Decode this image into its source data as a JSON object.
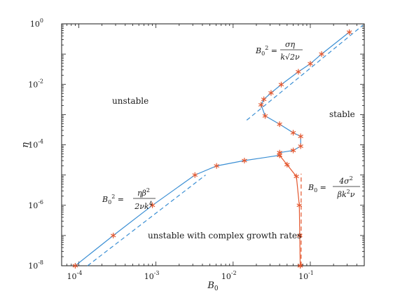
{
  "chart_data": {
    "type": "line",
    "xscale": "log",
    "yscale": "log",
    "xlim": [
      6e-05,
      0.5
    ],
    "ylim": [
      1e-08,
      1
    ],
    "xlabel": "B0",
    "ylabel": "η",
    "xtick_labels": [
      {
        "base": "10",
        "exp": "-4"
      },
      {
        "base": "10",
        "exp": "-3"
      },
      {
        "base": "10",
        "exp": "-2"
      },
      {
        "base": "10",
        "exp": "-1"
      }
    ],
    "ytick_labels": [
      {
        "base": "10",
        "exp": "0"
      },
      {
        "base": "10",
        "exp": "-2"
      },
      {
        "base": "10",
        "exp": "-4"
      },
      {
        "base": "10",
        "exp": "-6"
      },
      {
        "base": "10",
        "exp": "-8"
      }
    ],
    "region_labels": {
      "unstable": "unstable",
      "stable": "stable",
      "complex": "unstable with complex growth rates"
    },
    "colors": {
      "blue": "#3b8fd4",
      "orange": "#e4572e",
      "axis": "#1a1a1a"
    },
    "series": [
      {
        "style": "blue-solid-markers",
        "x": [
          9e-05,
          0.00028,
          0.0009,
          0.0032,
          0.0061,
          0.014,
          0.04,
          0.04,
          0.06,
          0.075,
          0.075,
          0.06,
          0.04,
          0.026,
          0.023,
          0.025,
          0.031,
          0.042,
          0.07,
          0.1,
          0.14,
          0.32
        ],
        "y": [
          1e-08,
          1e-07,
          1e-06,
          1e-05,
          2e-05,
          3e-05,
          4.5e-05,
          5.5e-05,
          6.5e-05,
          9e-05,
          0.00019,
          0.00025,
          0.00048,
          0.0009,
          0.0021,
          0.0032,
          0.0052,
          0.0098,
          0.026,
          0.048,
          0.1,
          0.53
        ]
      },
      {
        "style": "orange-solid-markers",
        "x": [
          0.04,
          0.05,
          0.066,
          0.072,
          0.073,
          0.074,
          0.074
        ],
        "y": [
          4.5e-05,
          2.2e-05,
          9e-06,
          1e-06,
          1e-07,
          1e-08,
          1e-08
        ]
      },
      {
        "style": "blue-dashed",
        "name": "",
        "x": [
          0.00013,
          0.0044
        ],
        "y": [
          1e-08,
          1e-05
        ]
      },
      {
        "style": "blue-dashed",
        "x": [
          0.015,
          0.48
        ],
        "y": [
          0.00065,
          0.9
        ]
      },
      {
        "style": "orange-dashed",
        "x": [
          0.076,
          0.076
        ],
        "y": [
          1e-08,
          1.1e-05
        ]
      }
    ],
    "annotations": [
      {
        "id": "eq-upper",
        "text": "B0^2 = σ η / (k √(2ν))"
      },
      {
        "id": "eq-lower",
        "text": "B0^2 = η β^2 / (2 ν k^4)"
      },
      {
        "id": "eq-right",
        "text": "B0 = 4 σ^2 / (β k^2 ν)"
      }
    ]
  }
}
